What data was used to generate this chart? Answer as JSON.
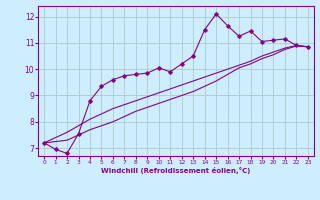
{
  "xlabel": "Windchill (Refroidissement éolien,°C)",
  "bg_color": "#cceeff",
  "grid_color": "#aacccc",
  "line_color": "#880088",
  "x_data": [
    0,
    1,
    2,
    3,
    4,
    5,
    6,
    7,
    8,
    9,
    10,
    11,
    12,
    13,
    14,
    15,
    16,
    17,
    18,
    19,
    20,
    21,
    22,
    23
  ],
  "y_main": [
    7.2,
    6.95,
    6.8,
    7.55,
    8.8,
    9.35,
    9.6,
    9.75,
    9.8,
    9.85,
    10.05,
    9.9,
    10.2,
    10.5,
    11.5,
    12.1,
    11.65,
    11.25,
    11.45,
    11.05,
    11.1,
    11.15,
    10.9,
    10.85
  ],
  "y_linear1": [
    7.2,
    7.4,
    7.6,
    7.85,
    8.1,
    8.3,
    8.5,
    8.65,
    8.8,
    8.95,
    9.1,
    9.25,
    9.4,
    9.55,
    9.7,
    9.85,
    10.0,
    10.15,
    10.3,
    10.5,
    10.65,
    10.8,
    10.9,
    10.85
  ],
  "y_linear2": [
    7.2,
    7.25,
    7.3,
    7.5,
    7.7,
    7.85,
    8.0,
    8.2,
    8.4,
    8.55,
    8.7,
    8.85,
    9.0,
    9.15,
    9.35,
    9.55,
    9.8,
    10.05,
    10.2,
    10.4,
    10.55,
    10.75,
    10.88,
    10.85
  ],
  "ylim": [
    6.7,
    12.4
  ],
  "xlim": [
    -0.5,
    23.5
  ],
  "yticks": [
    7,
    8,
    9,
    10,
    11,
    12
  ],
  "xticks": [
    0,
    1,
    2,
    3,
    4,
    5,
    6,
    7,
    8,
    9,
    10,
    11,
    12,
    13,
    14,
    15,
    16,
    17,
    18,
    19,
    20,
    21,
    22,
    23
  ]
}
